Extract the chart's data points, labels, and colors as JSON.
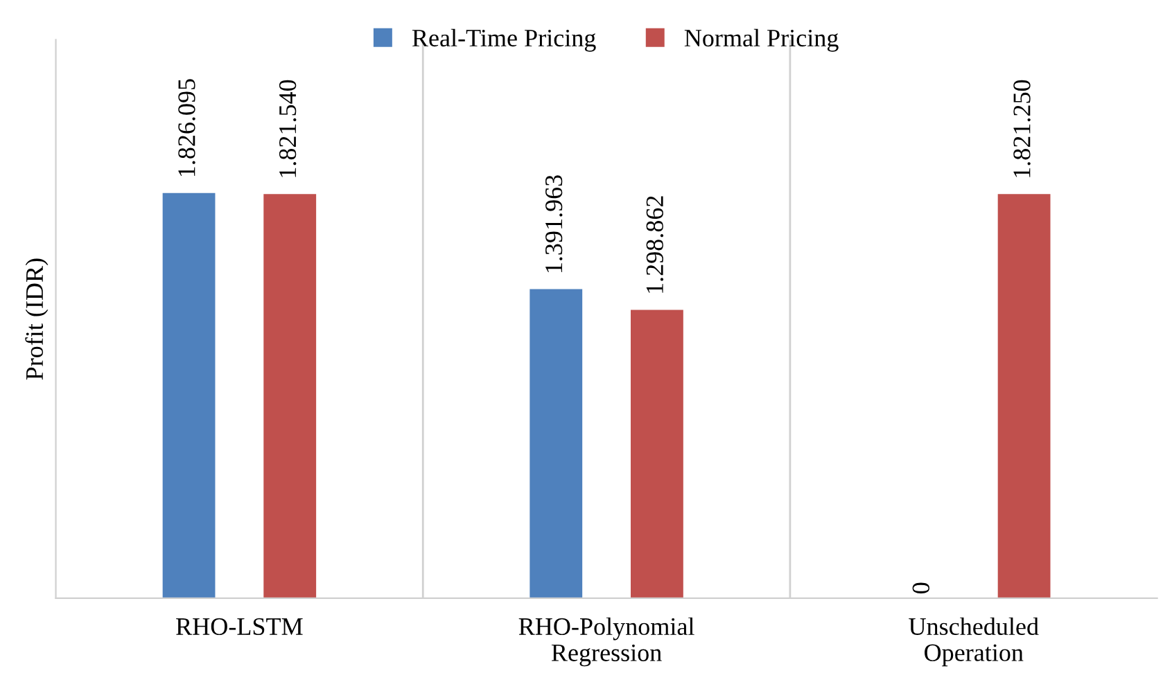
{
  "chart_data": {
    "type": "bar",
    "ylabel": "Profit (IDR)",
    "categories": [
      "RHO-LSTM",
      "RHO-Polynomial\nRegression",
      "Unscheduled\nOperation"
    ],
    "series": [
      {
        "name": "Real-Time Pricing",
        "color": "#4f81bd",
        "values": [
          1826095,
          1391963,
          0
        ],
        "value_labels": [
          "1.826.095",
          "1.391.963",
          "0"
        ]
      },
      {
        "name": "Normal Pricing",
        "color": "#c0504d",
        "values": [
          1821540,
          1298862,
          1821250
        ],
        "value_labels": [
          "1.821.540",
          "1.298.862",
          "1.821.250"
        ]
      }
    ],
    "legend": "top",
    "grid": false,
    "tick_labels": "x"
  }
}
